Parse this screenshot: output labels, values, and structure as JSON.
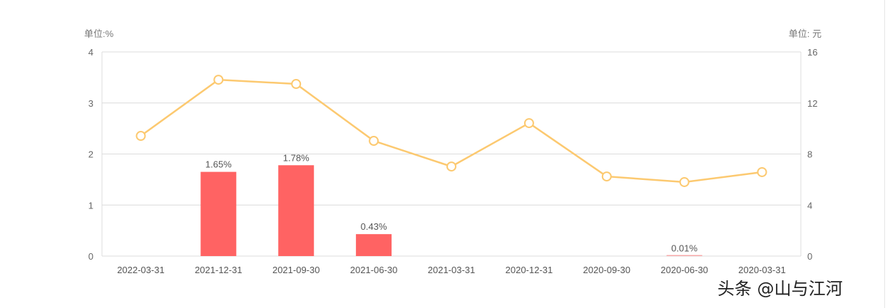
{
  "chart_data": {
    "type": "bar+line",
    "categories": [
      "2022-03-31",
      "2021-12-31",
      "2021-09-30",
      "2021-06-30",
      "2021-03-31",
      "2020-12-31",
      "2020-09-30",
      "2020-06-30",
      "2020-03-31"
    ],
    "series": [
      {
        "name": "bar",
        "axis": "left",
        "type": "bar",
        "color": "#ff6363",
        "values": [
          0,
          1.65,
          1.78,
          0.43,
          0,
          0,
          0,
          0.01,
          0
        ],
        "labels": [
          "",
          "1.65%",
          "1.78%",
          "0.43%",
          "",
          "",
          "",
          "0.01%",
          ""
        ]
      },
      {
        "name": "line",
        "axis": "right",
        "type": "line",
        "color": "#fcc970",
        "values": [
          9.42,
          13.82,
          13.49,
          9.03,
          7.02,
          10.42,
          6.24,
          5.8,
          6.58
        ]
      }
    ],
    "left_axis": {
      "unit_label": "单位:%",
      "ylim": [
        0,
        4
      ],
      "ticks": [
        "0",
        "1",
        "2",
        "3",
        "4"
      ]
    },
    "right_axis": {
      "unit_label": "单位: 元",
      "ylim": [
        0,
        16
      ],
      "ticks": [
        "0",
        "4",
        "8",
        "12",
        "16"
      ]
    },
    "grid": true
  },
  "watermark": "头条 @山与江河"
}
